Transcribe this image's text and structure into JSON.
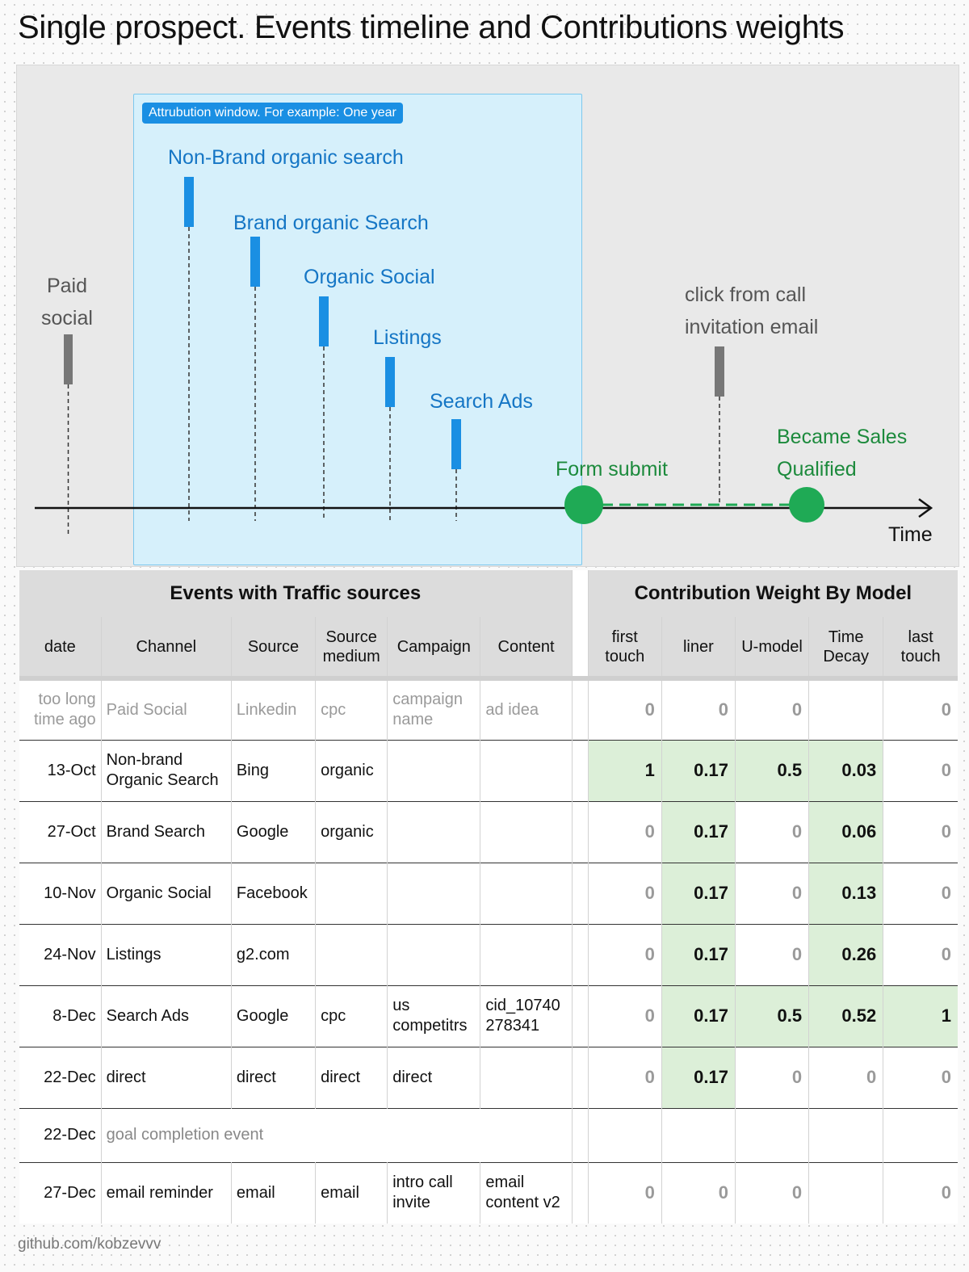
{
  "title": "Single prospect. Events timeline and Contributions weights",
  "window_label": "Attrubution window. For example: One year",
  "timeline": {
    "events": [
      {
        "label": "Paid\nsocial",
        "color": "#777777",
        "in_window": false
      },
      {
        "label": "Non-Brand organic search",
        "color": "#1a8fe3",
        "in_window": true
      },
      {
        "label": "Brand organic Search",
        "color": "#1a8fe3",
        "in_window": true
      },
      {
        "label": "Organic Social",
        "color": "#1a8fe3",
        "in_window": true
      },
      {
        "label": "Listings",
        "color": "#1a8fe3",
        "in_window": true
      },
      {
        "label": "Search Ads",
        "color": "#1a8fe3",
        "in_window": true
      },
      {
        "label": "click from call\ninvitation email",
        "color": "#777777",
        "in_window": false
      }
    ],
    "milestones": [
      {
        "label": "Form submit",
        "color": "#1faa55"
      },
      {
        "label": "Became Sales\nQualified",
        "color": "#1faa55"
      }
    ],
    "axis_label": "Time"
  },
  "table": {
    "group_headers": [
      "Events with Traffic sources",
      "Contribution Weight By Model"
    ],
    "columns": [
      "date",
      "Channel",
      "Source",
      "Source medium",
      "Campaign",
      "Content"
    ],
    "model_columns": [
      "first touch",
      "liner",
      "U-model",
      "Time Decay",
      "last touch"
    ],
    "highlight_color": "#dcefd8",
    "rows": [
      {
        "date": "too long time ago",
        "channel": "Paid Social",
        "source": "Linkedin",
        "medium": "cpc",
        "campaign": "campaign name",
        "content": "ad idea",
        "weights": [
          "0",
          "0",
          "0",
          "",
          "0"
        ],
        "muted": true
      },
      {
        "date": "13-Oct",
        "channel": "Non-brand Organic Search",
        "source": "Bing",
        "medium": "organic",
        "campaign": "",
        "content": "",
        "weights": [
          "1",
          "0.17",
          "0.5",
          "0.03",
          "0"
        ]
      },
      {
        "date": "27-Oct",
        "channel": "Brand Search",
        "source": "Google",
        "medium": "organic",
        "campaign": "",
        "content": "",
        "weights": [
          "0",
          "0.17",
          "0",
          "0.06",
          "0"
        ]
      },
      {
        "date": "10-Nov",
        "channel": "Organic Social",
        "source": "Facebook",
        "medium": "",
        "campaign": "",
        "content": "",
        "weights": [
          "0",
          "0.17",
          "0",
          "0.13",
          "0"
        ]
      },
      {
        "date": "24-Nov",
        "channel": "Listings",
        "source": "g2.com",
        "medium": "",
        "campaign": "",
        "content": "",
        "weights": [
          "0",
          "0.17",
          "0",
          "0.26",
          "0"
        ]
      },
      {
        "date": "8-Dec",
        "channel": "Search Ads",
        "source": "Google",
        "medium": "cpc",
        "campaign": "us competitrs",
        "content": "cid_10740 278341",
        "weights": [
          "0",
          "0.17",
          "0.5",
          "0.52",
          "1"
        ]
      },
      {
        "date": "22-Dec",
        "channel": "direct",
        "source": "direct",
        "medium": "direct",
        "campaign": "direct",
        "content": "",
        "weights": [
          "0",
          "0.17",
          "0",
          "0",
          "0"
        ]
      },
      {
        "date": "22-Dec",
        "channel": "goal completion event",
        "goal": true
      },
      {
        "date": "27-Dec",
        "channel": "email reminder",
        "source": "email",
        "medium": "email",
        "campaign": "intro call invite",
        "content": "email content v2",
        "weights": [
          "0",
          "0",
          "0",
          "",
          "0"
        ]
      }
    ]
  },
  "footer": "github.com/kobzevvv"
}
